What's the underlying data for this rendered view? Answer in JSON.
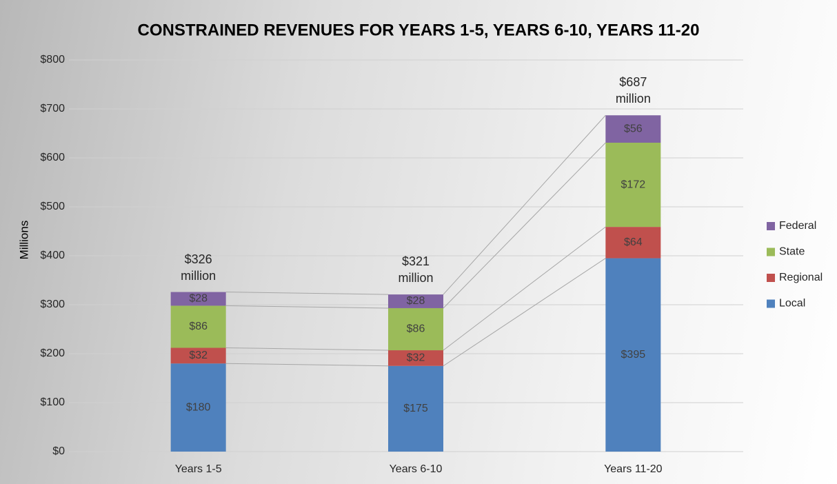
{
  "chart_data": {
    "type": "stacked_bar",
    "title": "CONSTRAINED REVENUES FOR YEARS 1-5, YEARS 6-10, YEARS 11-20",
    "y_label": "Millions",
    "categories": [
      "Years 1-5",
      "Years 6-10",
      "Years 11-20"
    ],
    "series": [
      {
        "name": "Local",
        "color": "#4f81bd",
        "values": [
          180,
          175,
          395
        ],
        "value_labels": [
          "$180",
          "$175",
          "$395"
        ]
      },
      {
        "name": "Regional",
        "color": "#c0504d",
        "values": [
          32,
          32,
          64
        ],
        "value_labels": [
          "$32",
          "$32",
          "$64"
        ]
      },
      {
        "name": "State",
        "color": "#9bbb59",
        "values": [
          86,
          86,
          172
        ],
        "value_labels": [
          "$86",
          "$86",
          "$172"
        ]
      },
      {
        "name": "Federal",
        "color": "#8064a2",
        "values": [
          28,
          28,
          56
        ],
        "value_labels": [
          "$28",
          "$28",
          "$56"
        ]
      }
    ],
    "totals": {
      "values": [
        326,
        321,
        687
      ],
      "value_labels": [
        "$326 million",
        "$321 million",
        "$687 million"
      ]
    },
    "ylim": [
      0,
      800
    ],
    "yticks": [
      {
        "value": 0,
        "label": "$0"
      },
      {
        "value": 100,
        "label": "$100"
      },
      {
        "value": 200,
        "label": "$200"
      },
      {
        "value": 300,
        "label": "$300"
      },
      {
        "value": 400,
        "label": "$400"
      },
      {
        "value": 500,
        "label": "$500"
      },
      {
        "value": 600,
        "label": "$600"
      },
      {
        "value": 700,
        "label": "$700"
      },
      {
        "value": 800,
        "label": "$800"
      }
    ],
    "grid": true,
    "legend": "right"
  }
}
